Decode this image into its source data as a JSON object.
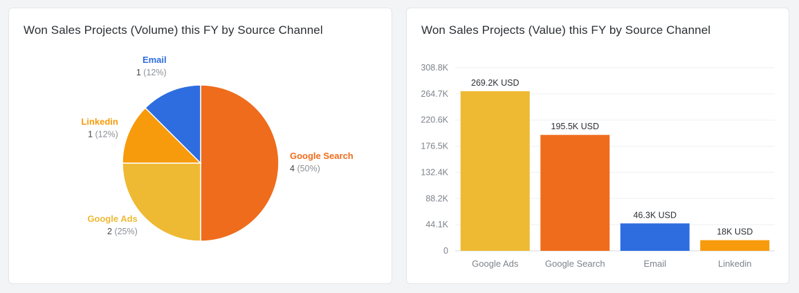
{
  "cards": [
    {
      "title": "Won Sales Projects (Volume) this FY by Source Channel",
      "chart_data": {
        "type": "pie",
        "slices": [
          {
            "label": "Google Search",
            "value": 4,
            "percent": "50%",
            "color": "#ef6c1c"
          },
          {
            "label": "Google Ads",
            "value": 2,
            "percent": "25%",
            "color": "#eeba34"
          },
          {
            "label": "Linkedin",
            "value": 1,
            "percent": "12%",
            "color": "#f79b0c"
          },
          {
            "label": "Email",
            "value": 1,
            "percent": "12%",
            "color": "#2e6ddf"
          }
        ]
      }
    },
    {
      "title": "Won Sales Projects (Value) this FY by Source Channel",
      "chart_data": {
        "type": "bar",
        "categories": [
          "Google Ads",
          "Google Search",
          "Email",
          "Linkedin"
        ],
        "values": [
          269200,
          195500,
          46300,
          18000
        ],
        "data_labels": [
          "269.2K USD",
          "195.5K USD",
          "46.3K USD",
          "18K USD"
        ],
        "colors": [
          "#eeba34",
          "#ef6c1c",
          "#2e6ddf",
          "#f79b0c"
        ],
        "y_ticks": [
          "0",
          "44.1K",
          "88.2K",
          "132.4K",
          "176.5K",
          "220.6K",
          "264.7K",
          "308.8K"
        ],
        "ylim": [
          0,
          308800
        ],
        "grid": true
      }
    }
  ]
}
